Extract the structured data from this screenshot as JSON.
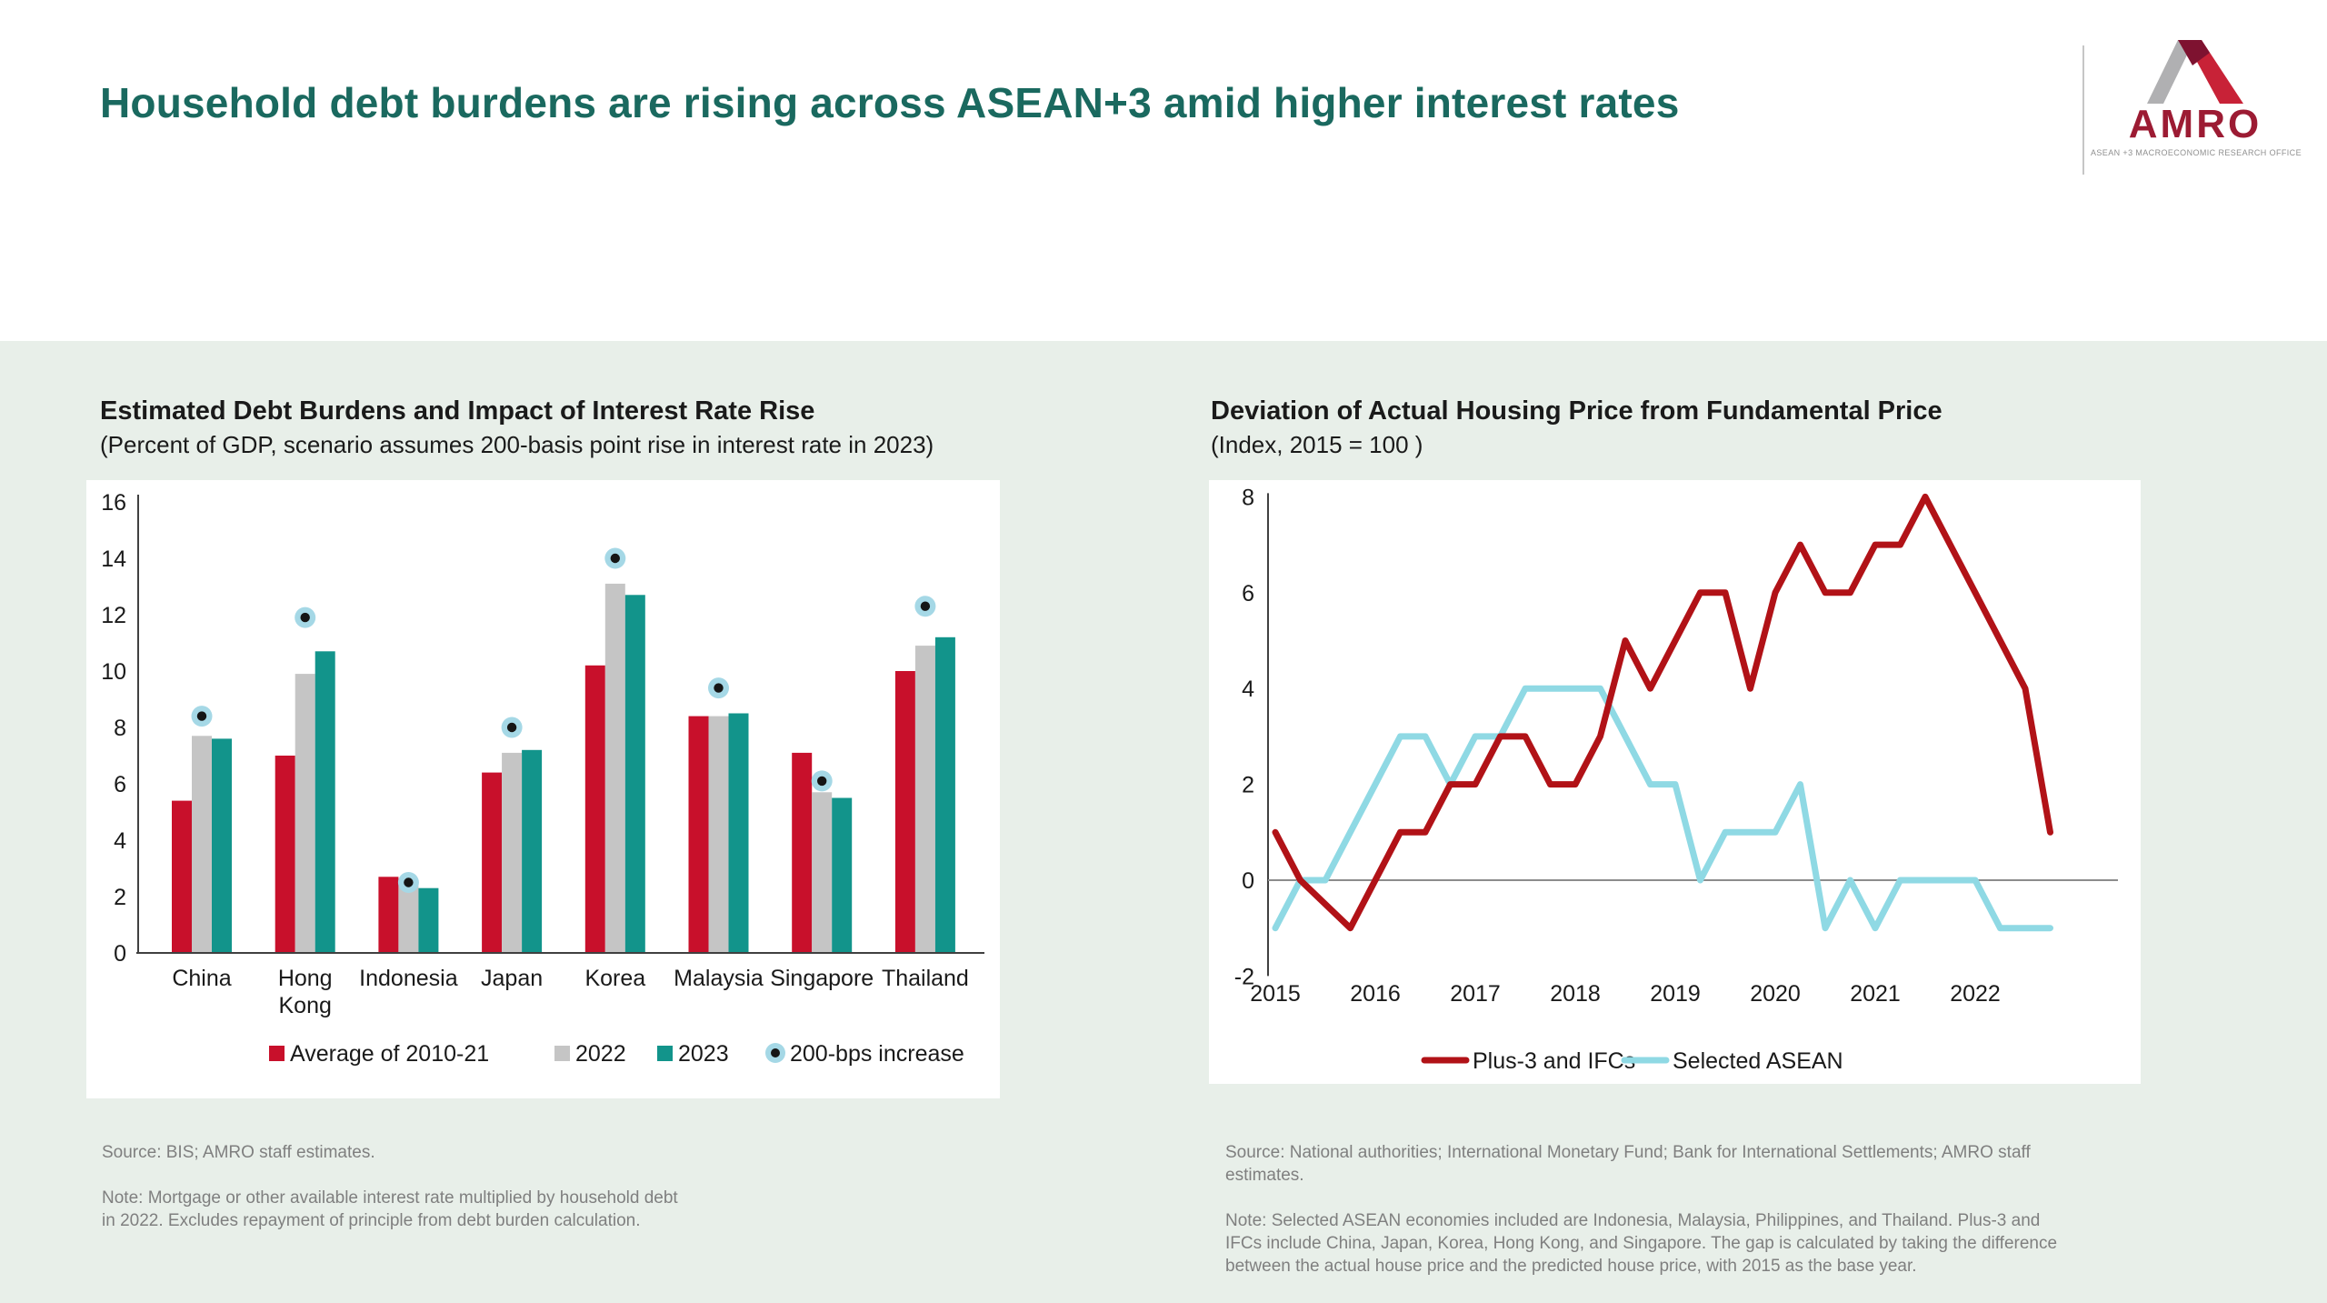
{
  "page": {
    "title": "Household debt burdens are rising across ASEAN+3 amid higher interest rates"
  },
  "logo": {
    "name": "AMRO",
    "tagline": "ASEAN +3 MACROECONOMIC RESEARCH OFFICE"
  },
  "left_panel": {
    "title": "Estimated Debt Burdens and Impact of Interest Rate Rise",
    "subtitle": "(Percent of GDP, scenario assumes 200-basis point rise in interest rate in 2023)",
    "source": "Source: BIS; AMRO staff estimates.",
    "note": "Note: Mortgage or other available interest rate multiplied by household debt in 2022. Excludes repayment of principle from debt burden calculation."
  },
  "right_panel": {
    "title": "Deviation of Actual Housing Price from Fundamental Price",
    "subtitle": "(Index, 2015 = 100 )",
    "source": "Source: National authorities; International Monetary Fund; Bank for International Settlements; AMRO staff estimates.",
    "note": "Note: Selected ASEAN economies included are Indonesia, Malaysia, Philippines, and Thailand. Plus-3 and IFCs include China, Japan, Korea, Hong Kong, and Singapore. The gap is calculated by taking the difference between the actual house price and the predicted house price, with 2015 as the base year."
  },
  "chart_data": [
    {
      "type": "bar",
      "title": "Estimated Debt Burdens and Impact of Interest Rate Rise",
      "categories": [
        "China",
        "Hong Kong",
        "Indonesia",
        "Japan",
        "Korea",
        "Malaysia",
        "Singapore",
        "Thailand"
      ],
      "series": [
        {
          "name": "Average of 2010-21",
          "color": "#c8102b",
          "values": [
            5.4,
            7.0,
            2.7,
            6.4,
            10.2,
            8.4,
            7.1,
            10.0
          ]
        },
        {
          "name": "2022",
          "color": "#c5c5c5",
          "values": [
            7.7,
            9.9,
            2.4,
            7.1,
            13.1,
            8.4,
            5.7,
            10.9
          ]
        },
        {
          "name": "2023",
          "color": "#12948b",
          "values": [
            7.6,
            10.7,
            2.3,
            7.2,
            12.7,
            8.5,
            5.5,
            11.2
          ]
        }
      ],
      "markers": {
        "name": "200-bps increase",
        "ring_color": "#a5d8e6",
        "dot_color": "#151515",
        "values": [
          8.4,
          11.9,
          2.5,
          8.0,
          14.0,
          9.4,
          6.1,
          12.3
        ]
      },
      "ylim": [
        0,
        16
      ],
      "ytick_step": 2,
      "grid": false,
      "legend_position": "bottom"
    },
    {
      "type": "line",
      "title": "Deviation of Actual Housing Price from Fundamental Price",
      "x_frequency": "quarterly",
      "x_year_labels": [
        "2015",
        "2016",
        "2017",
        "2018",
        "2019",
        "2020",
        "2021",
        "2022"
      ],
      "series": [
        {
          "name": "Plus-3 and IFCs",
          "color": "#b11217",
          "values": [
            1,
            0,
            -0.5,
            -1,
            0,
            1,
            1,
            2,
            2,
            3,
            3,
            2,
            2,
            3,
            5,
            4,
            5,
            6,
            6,
            4,
            6,
            7,
            6,
            6,
            7,
            7,
            8,
            7,
            6,
            5,
            4,
            1
          ]
        },
        {
          "name": "Selected ASEAN",
          "color": "#8fd9e4",
          "values": [
            -1,
            0,
            0,
            1,
            2,
            3,
            3,
            2,
            3,
            3,
            4,
            4,
            4,
            4,
            3,
            2,
            2,
            0,
            1,
            1,
            1,
            2,
            -1,
            0,
            -1,
            0,
            0,
            0,
            0,
            -1,
            -1,
            -1
          ]
        }
      ],
      "ylim": [
        -2,
        8
      ],
      "ytick_step": 2,
      "zero_line": true,
      "grid": false,
      "legend_position": "bottom"
    }
  ],
  "colors": {
    "title_teal": "#1a695f",
    "body_bg": "#e8efe9",
    "note_gray": "#7f7f7f",
    "logo_red": "#9c1b33",
    "logo_dark_red": "#7e1230",
    "logo_silver": "#b0b0b2",
    "axis_dark": "#404040",
    "zero_line_gray": "#8c8c8c"
  }
}
